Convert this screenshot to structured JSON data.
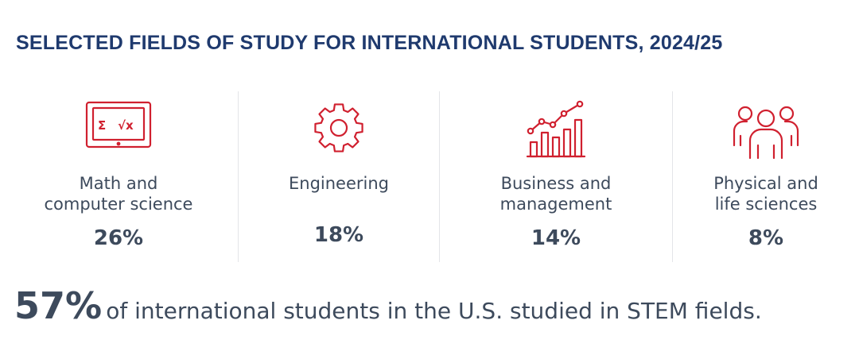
{
  "title": "SELECTED FIELDS OF STUDY FOR INTERNATIONAL STUDENTS, 2024/25",
  "accent_color": "#d0202f",
  "fields": [
    {
      "icon": "laptop-math-icon",
      "label_lines": [
        "Math and",
        "computer science"
      ],
      "percent": "26%",
      "icon_text_sigma": "Σ",
      "icon_text_root": "√x"
    },
    {
      "icon": "gear-icon",
      "label_lines": [
        "Engineering"
      ],
      "percent": "18%"
    },
    {
      "icon": "growth-chart-icon",
      "label_lines": [
        "Business and",
        "management"
      ],
      "percent": "14%"
    },
    {
      "icon": "people-group-icon",
      "label_lines": [
        "Physical and",
        "life sciences"
      ],
      "percent": "8%"
    }
  ],
  "summary": {
    "highlight": "57%",
    "text": "of international students in the U.S. studied in STEM fields."
  }
}
